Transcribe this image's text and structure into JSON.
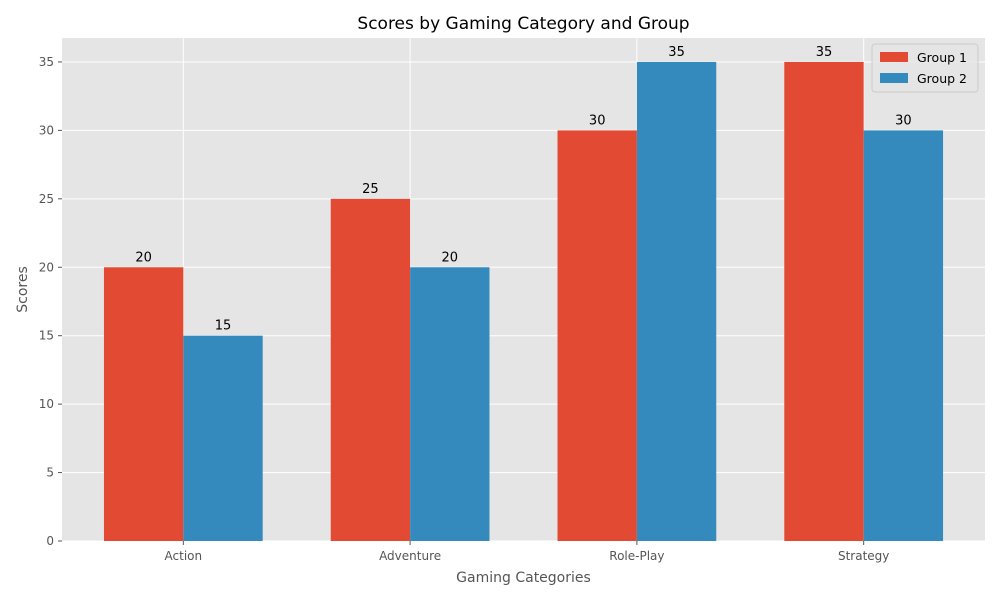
{
  "chart_data": {
    "type": "bar",
    "title": "Scores by Gaming Category and Group",
    "xlabel": "Gaming Categories",
    "ylabel": "Scores",
    "categories": [
      "Action",
      "Adventure",
      "Role-Play",
      "Strategy"
    ],
    "series": [
      {
        "name": "Group 1",
        "values": [
          20,
          25,
          30,
          35
        ],
        "color": "#e24a33"
      },
      {
        "name": "Group 2",
        "values": [
          15,
          20,
          35,
          30
        ],
        "color": "#348abd"
      }
    ],
    "ylim": [
      0,
      36.75
    ],
    "yticks": [
      0,
      5,
      10,
      15,
      20,
      25,
      30,
      35
    ],
    "grid": true,
    "legend_position": "top-right",
    "background_color": "#e5e5e5",
    "grid_color": "#ffffff"
  }
}
